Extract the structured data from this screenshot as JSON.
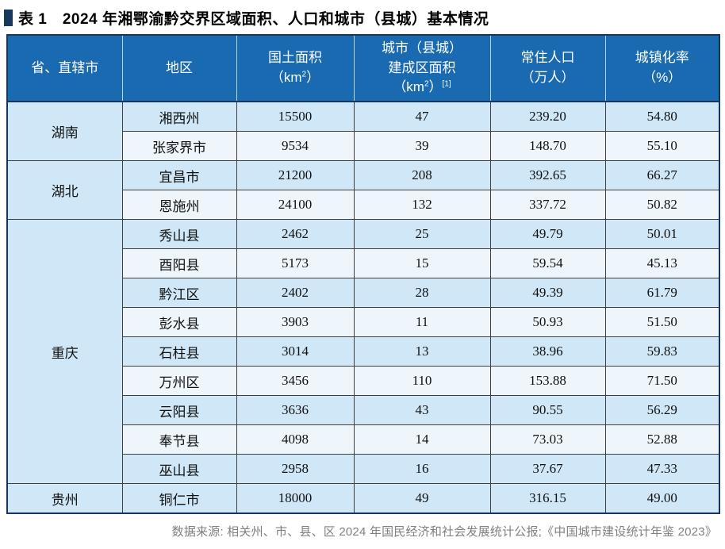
{
  "title": {
    "text": "表 1　2024 年湘鄂渝黔交界区域面积、人口和城市（县城）基本情况"
  },
  "table": {
    "headers": [
      {
        "id": "province",
        "lines": [
          [
            {
              "t": "省、直辖市"
            }
          ]
        ]
      },
      {
        "id": "region",
        "lines": [
          [
            {
              "t": "地区"
            }
          ]
        ]
      },
      {
        "id": "land-area",
        "lines": [
          [
            {
              "t": "国土面积"
            }
          ],
          [
            {
              "t": "（km"
            },
            {
              "t": "2",
              "sup": true
            },
            {
              "t": "）"
            }
          ]
        ]
      },
      {
        "id": "built-up-area",
        "lines": [
          [
            {
              "t": "城市（县城）"
            }
          ],
          [
            {
              "t": "建成区面积"
            }
          ],
          [
            {
              "t": "（km"
            },
            {
              "t": "2",
              "sup": true
            },
            {
              "t": "）"
            },
            {
              "t": "[1]",
              "sup": true
            }
          ]
        ]
      },
      {
        "id": "population",
        "lines": [
          [
            {
              "t": "常住人口"
            }
          ],
          [
            {
              "t": "（万人）"
            }
          ]
        ]
      },
      {
        "id": "urbanization",
        "lines": [
          [
            {
              "t": "城镇化率"
            }
          ],
          [
            {
              "t": "（%）"
            }
          ]
        ]
      }
    ],
    "groups": [
      {
        "province": "湖南",
        "rows": [
          {
            "region": "湘西州",
            "land_area": "15500",
            "built_up_area": "47",
            "population": "239.20",
            "urbanization": "54.80"
          },
          {
            "region": "张家界市",
            "land_area": "9534",
            "built_up_area": "39",
            "population": "148.70",
            "urbanization": "55.10"
          }
        ]
      },
      {
        "province": "湖北",
        "rows": [
          {
            "region": "宜昌市",
            "land_area": "21200",
            "built_up_area": "208",
            "population": "392.65",
            "urbanization": "66.27"
          },
          {
            "region": "恩施州",
            "land_area": "24100",
            "built_up_area": "132",
            "population": "337.72",
            "urbanization": "50.82"
          }
        ]
      },
      {
        "province": "重庆",
        "rows": [
          {
            "region": "秀山县",
            "land_area": "2462",
            "built_up_area": "25",
            "population": "49.79",
            "urbanization": "50.01"
          },
          {
            "region": "酉阳县",
            "land_area": "5173",
            "built_up_area": "15",
            "population": "59.54",
            "urbanization": "45.13"
          },
          {
            "region": "黔江区",
            "land_area": "2402",
            "built_up_area": "28",
            "population": "49.39",
            "urbanization": "61.79"
          },
          {
            "region": "彭水县",
            "land_area": "3903",
            "built_up_area": "11",
            "population": "50.93",
            "urbanization": "51.50"
          },
          {
            "region": "石柱县",
            "land_area": "3014",
            "built_up_area": "13",
            "population": "38.96",
            "urbanization": "59.83"
          },
          {
            "region": "万州区",
            "land_area": "3456",
            "built_up_area": "110",
            "population": "153.88",
            "urbanization": "71.50"
          },
          {
            "region": "云阳县",
            "land_area": "3636",
            "built_up_area": "43",
            "population": "90.55",
            "urbanization": "56.29"
          },
          {
            "region": "奉节县",
            "land_area": "4098",
            "built_up_area": "14",
            "population": "73.03",
            "urbanization": "52.88"
          },
          {
            "region": "巫山县",
            "land_area": "2958",
            "built_up_area": "16",
            "population": "37.67",
            "urbanization": "47.33"
          }
        ]
      },
      {
        "province": "贵州",
        "rows": [
          {
            "region": "铜仁市",
            "land_area": "18000",
            "built_up_area": "49",
            "population": "316.15",
            "urbanization": "49.00"
          }
        ]
      }
    ]
  },
  "source_note": "数据来源: 相关州、市、县、区 2024 年国民经济和社会发展统计公报;《中国城市建设统计年鉴 2023》",
  "colors": {
    "header_bg": "#1a6ab1",
    "header_divider": "#bcd2e6",
    "frame": "#17365d",
    "grid": "#3f3f3f",
    "row_light": "#cfe7f6",
    "row_pale": "#eef5fb",
    "marker": "#17375e",
    "note": "#808080"
  }
}
